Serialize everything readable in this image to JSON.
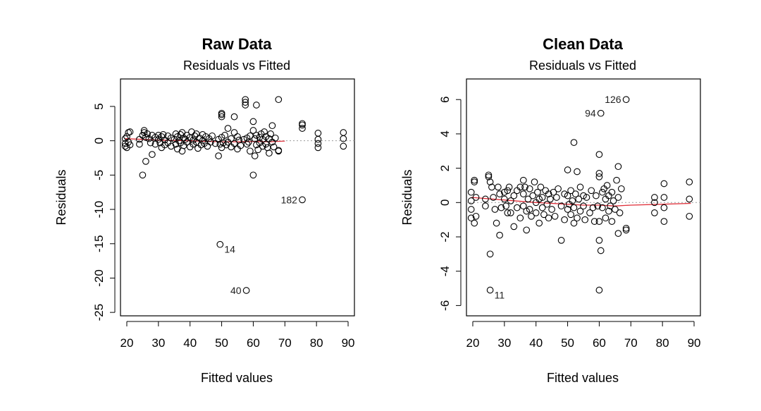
{
  "chart_data": [
    {
      "type": "scatter",
      "title": "Raw Data",
      "subtitle": "Residuals vs Fitted",
      "xlabel": "Fitted values",
      "ylabel": "Residuals",
      "xlim": [
        18,
        92
      ],
      "ylim": [
        -25.5,
        9
      ],
      "x_ticks": [
        20,
        30,
        40,
        50,
        60,
        70,
        80,
        90
      ],
      "y_ticks": [
        5,
        0,
        -5,
        -10,
        -15,
        -20,
        -25
      ],
      "grid": false,
      "line_color": "#e0303a",
      "annotations": [
        {
          "label": "182",
          "x": 75.5,
          "y": -8.6
        },
        {
          "label": "14",
          "x": 49.5,
          "y": -15.1
        },
        {
          "label": "40",
          "x": 57.8,
          "y": -21.8
        }
      ],
      "smooth": [
        [
          19.5,
          0.3
        ],
        [
          30,
          0.1
        ],
        [
          40,
          0.0
        ],
        [
          50,
          -0.15
        ],
        [
          55,
          -0.15
        ],
        [
          60,
          -0.1
        ],
        [
          65,
          -0.15
        ],
        [
          70,
          -0.05
        ]
      ],
      "points": [
        [
          19.5,
          0.3
        ],
        [
          19.5,
          -0.4
        ],
        [
          19.5,
          -0.8
        ],
        [
          20,
          0.6
        ],
        [
          20,
          -1.0
        ],
        [
          20.5,
          1.2
        ],
        [
          20.5,
          -0.2
        ],
        [
          21,
          1.3
        ],
        [
          21,
          -0.6
        ],
        [
          24,
          0.2
        ],
        [
          24,
          -0.5
        ],
        [
          25,
          0.8
        ],
        [
          25,
          -5.0
        ],
        [
          25.5,
          1.5
        ],
        [
          25.5,
          1.2
        ],
        [
          26,
          0.5
        ],
        [
          26,
          -3.0
        ],
        [
          26.5,
          1.0
        ],
        [
          27,
          0.3
        ],
        [
          27.5,
          -0.3
        ],
        [
          28,
          -2.0
        ],
        [
          28,
          0.8
        ],
        [
          29,
          0.5
        ],
        [
          29,
          -0.5
        ],
        [
          30,
          0.2
        ],
        [
          30,
          0.8
        ],
        [
          30.5,
          -0.3
        ],
        [
          31,
          0.6
        ],
        [
          31,
          -1.0
        ],
        [
          31.5,
          0.9
        ],
        [
          32,
          0.1
        ],
        [
          32,
          -0.6
        ],
        [
          33,
          0.7
        ],
        [
          33,
          -0.3
        ],
        [
          34,
          0.4
        ],
        [
          34,
          -0.8
        ],
        [
          35,
          0.2
        ],
        [
          35.5,
          1.0
        ],
        [
          35.5,
          -0.5
        ],
        [
          36,
          0.6
        ],
        [
          36,
          -1.2
        ],
        [
          36.5,
          0.0
        ],
        [
          37,
          0.9
        ],
        [
          37,
          -0.3
        ],
        [
          37.5,
          1.2
        ],
        [
          37.5,
          -1.5
        ],
        [
          38,
          0.4
        ],
        [
          38,
          -0.7
        ],
        [
          38.5,
          0.2
        ],
        [
          39,
          0.8
        ],
        [
          39,
          -0.2
        ],
        [
          40,
          0.5
        ],
        [
          40,
          -0.9
        ],
        [
          40.5,
          1.3
        ],
        [
          41,
          0.1
        ],
        [
          41,
          -0.5
        ],
        [
          41.5,
          0.7
        ],
        [
          42,
          -0.2
        ],
        [
          42,
          1.0
        ],
        [
          42.5,
          -1.1
        ],
        [
          43,
          0.4
        ],
        [
          43.5,
          -0.6
        ],
        [
          44,
          0.9
        ],
        [
          44,
          0.0
        ],
        [
          44.5,
          -0.4
        ],
        [
          45,
          0.6
        ],
        [
          45.5,
          -0.8
        ],
        [
          46,
          0.3
        ],
        [
          46.5,
          -0.2
        ],
        [
          47,
          0.7
        ],
        [
          48,
          -0.4
        ],
        [
          49,
          0.2
        ],
        [
          49,
          -2.2
        ],
        [
          49.5,
          -0.5
        ],
        [
          50,
          3.8
        ],
        [
          50,
          3.5
        ],
        [
          50,
          4.0
        ],
        [
          50,
          0.5
        ],
        [
          50,
          -1.0
        ],
        [
          50.5,
          -0.3
        ],
        [
          51,
          0.8
        ],
        [
          51.5,
          -0.6
        ],
        [
          52,
          1.8
        ],
        [
          52,
          -0.2
        ],
        [
          53,
          0.3
        ],
        [
          53,
          -0.9
        ],
        [
          54,
          3.5
        ],
        [
          54,
          1.2
        ],
        [
          54,
          -0.4
        ],
        [
          55,
          0.6
        ],
        [
          55,
          -1.2
        ],
        [
          55.5,
          0.1
        ],
        [
          56,
          -0.7
        ],
        [
          57,
          0.2
        ],
        [
          57.5,
          6.0
        ],
        [
          57.5,
          5.6
        ],
        [
          57.5,
          5.2
        ],
        [
          58,
          0.4
        ],
        [
          58,
          -0.5
        ],
        [
          58.5,
          -0.2
        ],
        [
          59,
          0.7
        ],
        [
          59,
          -1.5
        ],
        [
          60,
          2.8
        ],
        [
          60,
          1.5
        ],
        [
          60,
          -5.0
        ],
        [
          60.5,
          0.3
        ],
        [
          60.5,
          -2.2
        ],
        [
          61,
          5.2
        ],
        [
          61,
          0.8
        ],
        [
          61,
          -0.6
        ],
        [
          61.5,
          -1.3
        ],
        [
          62,
          0.5
        ],
        [
          62,
          -0.3
        ],
        [
          62.5,
          1.0
        ],
        [
          63,
          -0.8
        ],
        [
          63,
          0.2
        ],
        [
          63.5,
          1.3
        ],
        [
          64,
          -0.5
        ],
        [
          64,
          0.6
        ],
        [
          64.5,
          -1.0
        ],
        [
          65,
          0.3
        ],
        [
          65,
          -1.8
        ],
        [
          65.5,
          1.0
        ],
        [
          66,
          -0.2
        ],
        [
          66,
          2.2
        ],
        [
          66.5,
          -0.9
        ],
        [
          67,
          0.4
        ],
        [
          68,
          6.0
        ],
        [
          68,
          -1.5
        ],
        [
          68,
          -1.4
        ],
        [
          75.5,
          2.3
        ],
        [
          75.5,
          1.8
        ],
        [
          75.5,
          2.5
        ],
        [
          80.5,
          1.1
        ],
        [
          80.5,
          0.2
        ],
        [
          80.5,
          -0.4
        ],
        [
          80.5,
          -1.0
        ],
        [
          88.5,
          1.2
        ],
        [
          88.5,
          0.3
        ],
        [
          88.5,
          -0.8
        ],
        [
          75.5,
          -8.6
        ],
        [
          49.5,
          -15.1
        ],
        [
          57.8,
          -21.8
        ]
      ]
    },
    {
      "type": "scatter",
      "title": "Clean Data",
      "subtitle": "Residuals vs Fitted",
      "xlabel": "Fitted values",
      "ylabel": "Residuals",
      "xlim": [
        18,
        92
      ],
      "ylim": [
        -6.6,
        7.2
      ],
      "x_ticks": [
        20,
        30,
        40,
        50,
        60,
        70,
        80,
        90
      ],
      "y_ticks": [
        6,
        4,
        2,
        0,
        -2,
        -4,
        -6
      ],
      "grid": false,
      "line_color": "#e0303a",
      "annotations": [
        {
          "label": "126",
          "x": 68.5,
          "y": 6.0
        },
        {
          "label": "94",
          "x": 60.5,
          "y": 5.2
        },
        {
          "label": "11",
          "x": 25.5,
          "y": -5.1
        }
      ],
      "smooth": [
        [
          19.5,
          0.3
        ],
        [
          30,
          0.15
        ],
        [
          40,
          0.0
        ],
        [
          50,
          -0.1
        ],
        [
          55,
          -0.15
        ],
        [
          60,
          -0.15
        ],
        [
          65,
          -0.2
        ],
        [
          70,
          -0.15
        ],
        [
          80,
          -0.1
        ],
        [
          89,
          -0.05
        ]
      ],
      "points": [
        [
          19.5,
          0.6
        ],
        [
          19.5,
          0.1
        ],
        [
          19.5,
          -0.4
        ],
        [
          19.5,
          -0.9
        ],
        [
          20.5,
          1.3
        ],
        [
          20.5,
          1.2
        ],
        [
          20.5,
          -1.2
        ],
        [
          21,
          0.3
        ],
        [
          21,
          -0.8
        ],
        [
          24,
          0.2
        ],
        [
          24,
          -0.2
        ],
        [
          25,
          1.6
        ],
        [
          25,
          1.5
        ],
        [
          25.5,
          1.2
        ],
        [
          25.5,
          -3.0
        ],
        [
          25.5,
          -5.1
        ],
        [
          26,
          0.9
        ],
        [
          26.5,
          0.3
        ],
        [
          27,
          -0.4
        ],
        [
          27.5,
          -1.2
        ],
        [
          28,
          0.9
        ],
        [
          28.5,
          0.5
        ],
        [
          28.5,
          -1.9
        ],
        [
          29,
          -0.3
        ],
        [
          30,
          0.6
        ],
        [
          30,
          0.2
        ],
        [
          30.5,
          -0.2
        ],
        [
          31,
          0.7
        ],
        [
          31,
          -0.6
        ],
        [
          31.5,
          0.9
        ],
        [
          32,
          0.1
        ],
        [
          32,
          -0.6
        ],
        [
          33,
          0.4
        ],
        [
          33,
          -1.4
        ],
        [
          34,
          0.7
        ],
        [
          34,
          -0.3
        ],
        [
          35,
          0.9
        ],
        [
          35,
          -0.9
        ],
        [
          36,
          1.3
        ],
        [
          36,
          0.5
        ],
        [
          36,
          -0.2
        ],
        [
          36.5,
          0.9
        ],
        [
          37,
          -0.5
        ],
        [
          37,
          -1.6
        ],
        [
          37.5,
          0.2
        ],
        [
          38,
          0.8
        ],
        [
          38,
          -0.4
        ],
        [
          38.5,
          -0.8
        ],
        [
          39,
          0.4
        ],
        [
          39.5,
          1.2
        ],
        [
          40,
          0.0
        ],
        [
          40,
          -0.6
        ],
        [
          40.5,
          0.6
        ],
        [
          41,
          -1.2
        ],
        [
          41,
          0.2
        ],
        [
          41.5,
          0.9
        ],
        [
          42,
          -0.3
        ],
        [
          42,
          0.3
        ],
        [
          42.5,
          -0.7
        ],
        [
          43,
          0.7
        ],
        [
          43.5,
          -0.1
        ],
        [
          44,
          0.5
        ],
        [
          44,
          -0.9
        ],
        [
          44.5,
          0.2
        ],
        [
          45,
          -0.4
        ],
        [
          45.5,
          0.6
        ],
        [
          46,
          -0.8
        ],
        [
          46.5,
          0.3
        ],
        [
          47,
          0.8
        ],
        [
          48,
          -0.2
        ],
        [
          48,
          -2.2
        ],
        [
          49,
          0.5
        ],
        [
          49,
          -1.0
        ],
        [
          50,
          1.9
        ],
        [
          50,
          0.4
        ],
        [
          50,
          -0.4
        ],
        [
          50.5,
          -0.1
        ],
        [
          51,
          0.7
        ],
        [
          51,
          -0.7
        ],
        [
          51.5,
          0.1
        ],
        [
          52,
          -0.3
        ],
        [
          52,
          3.5
        ],
        [
          52,
          -1.2
        ],
        [
          52.5,
          0.5
        ],
        [
          53,
          1.8
        ],
        [
          53,
          -0.9
        ],
        [
          53.5,
          0.2
        ],
        [
          54,
          -0.5
        ],
        [
          54,
          0.9
        ],
        [
          55,
          -0.2
        ],
        [
          55,
          0.4
        ],
        [
          55.5,
          -1.0
        ],
        [
          56,
          0.3
        ],
        [
          57,
          -0.6
        ],
        [
          57.5,
          0.7
        ],
        [
          58,
          -0.3
        ],
        [
          58.5,
          -1.1
        ],
        [
          59,
          0.4
        ],
        [
          59.5,
          -0.2
        ],
        [
          60,
          2.8
        ],
        [
          60,
          1.7
        ],
        [
          60,
          1.5
        ],
        [
          60,
          -1.1
        ],
        [
          60,
          -2.2
        ],
        [
          60,
          -5.1
        ],
        [
          60.5,
          5.2
        ],
        [
          60.5,
          -2.8
        ],
        [
          61,
          0.6
        ],
        [
          61,
          -0.3
        ],
        [
          61.5,
          0.8
        ],
        [
          62,
          -0.9
        ],
        [
          62,
          0.2
        ],
        [
          62.5,
          1.0
        ],
        [
          63,
          -0.5
        ],
        [
          63,
          0.4
        ],
        [
          63.5,
          -0.2
        ],
        [
          64,
          0.6
        ],
        [
          64,
          -1.1
        ],
        [
          64.5,
          0.1
        ],
        [
          65,
          -0.4
        ],
        [
          65.5,
          1.3
        ],
        [
          66,
          2.1
        ],
        [
          66,
          0.3
        ],
        [
          66,
          -1.8
        ],
        [
          66.5,
          -0.6
        ],
        [
          67,
          0.8
        ],
        [
          68.5,
          6.0
        ],
        [
          68.5,
          -1.5
        ],
        [
          68.5,
          -1.6
        ],
        [
          77.5,
          0.3
        ],
        [
          77.5,
          0.0
        ],
        [
          77.5,
          -0.6
        ],
        [
          80.5,
          1.1
        ],
        [
          80.5,
          0.3
        ],
        [
          80.5,
          -0.3
        ],
        [
          80.5,
          -1.1
        ],
        [
          88.5,
          1.2
        ],
        [
          88.5,
          0.2
        ],
        [
          88.5,
          -0.8
        ]
      ]
    }
  ]
}
